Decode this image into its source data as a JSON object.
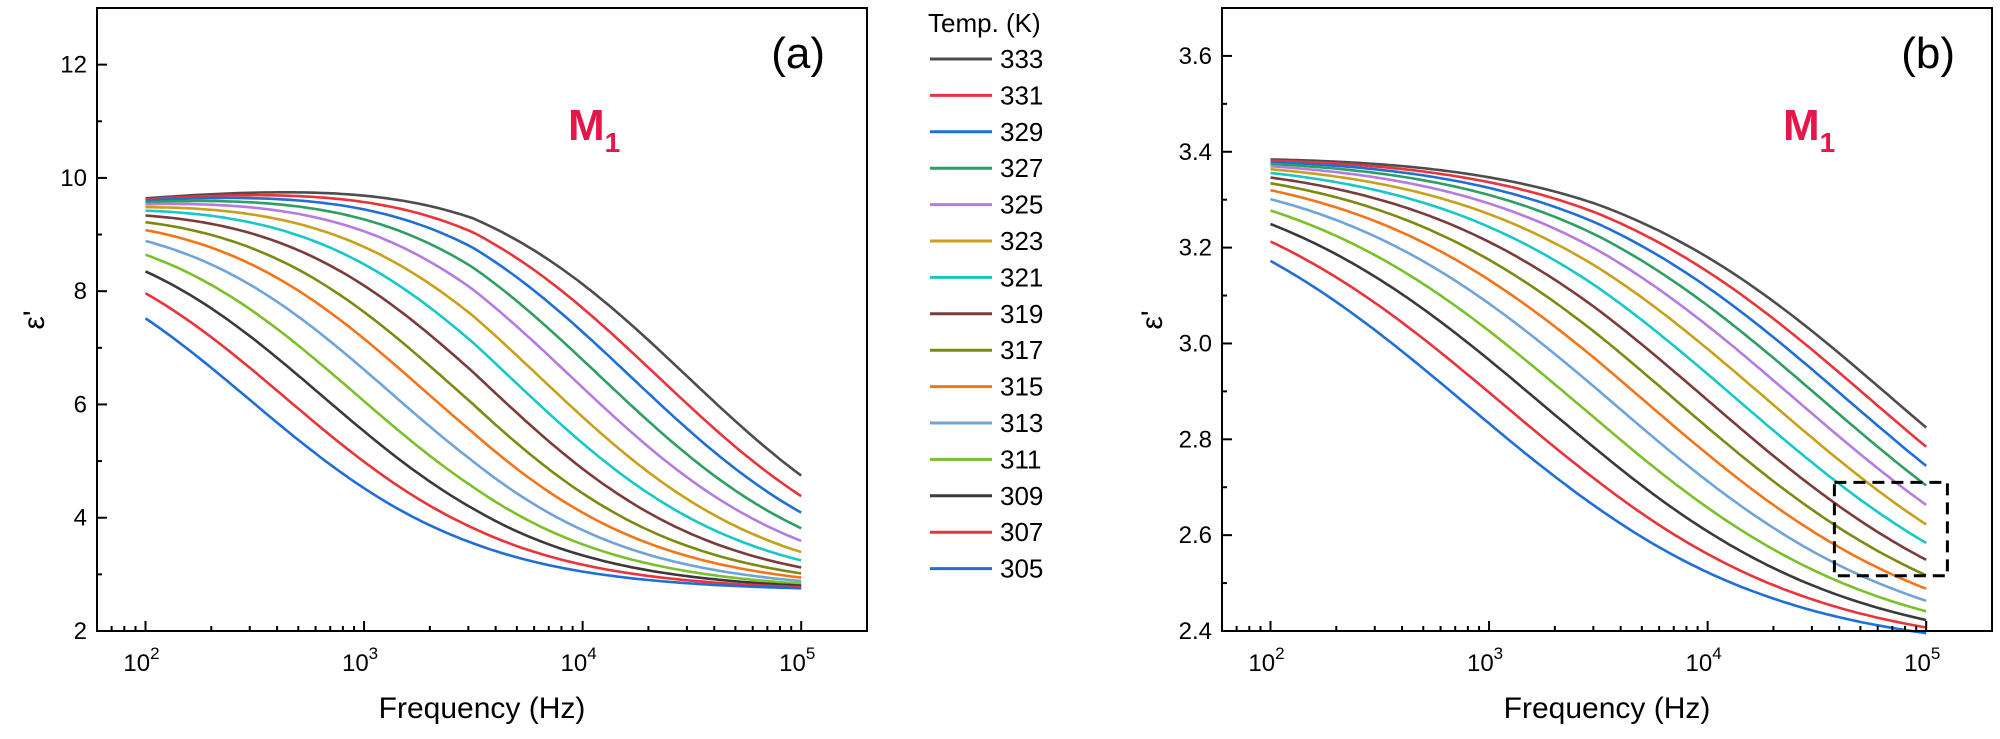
{
  "legend": {
    "title": "Temp. (K)",
    "entries": [
      "333",
      "331",
      "329",
      "327",
      "325",
      "323",
      "321",
      "319",
      "317",
      "315",
      "313",
      "311",
      "309",
      "307",
      "305"
    ],
    "colors": [
      "#4d4d4d",
      "#e8343a",
      "#1f6fd6",
      "#2e9e62",
      "#b57be0",
      "#c9a01a",
      "#17c7c9",
      "#7b3b3b",
      "#7d8a12",
      "#f27518",
      "#6ea4d8",
      "#7ac02a",
      "#3a3a3a",
      "#e8343a",
      "#1f6fd6"
    ]
  },
  "chart_data": [
    {
      "type": "line",
      "panel_label": "(a)",
      "annotation": {
        "main": "M",
        "sub": "1",
        "color": "#e5174a"
      },
      "xlabel": "Frequency (Hz)",
      "ylabel": "ε'",
      "x_scale": "log",
      "xlim": [
        60,
        200000
      ],
      "ylim": [
        2,
        13
      ],
      "x_tick_labels": [
        {
          "base": "10",
          "exp": "2"
        },
        {
          "base": "10",
          "exp": "3"
        },
        {
          "base": "10",
          "exp": "4"
        },
        {
          "base": "10",
          "exp": "5"
        }
      ],
      "x_ticks": [
        100,
        1000,
        10000,
        100000
      ],
      "y_ticks": [
        2,
        4,
        6,
        8,
        10,
        12
      ],
      "y_tick_labels": [
        "2",
        "4",
        "6",
        "8",
        "10",
        "12"
      ],
      "grid": false,
      "model": {
        "x_start": 100,
        "x_end": 100000,
        "low_start": 9.7,
        "low_end": 10.3,
        "high": 2.7,
        "width_decades": 1.15
      },
      "series": [
        {
          "name": "333",
          "f_c": 30000
        },
        {
          "name": "331",
          "f_c": 22000
        },
        {
          "name": "329",
          "f_c": 16500
        },
        {
          "name": "327",
          "f_c": 12000
        },
        {
          "name": "325",
          "f_c": 8800
        },
        {
          "name": "323",
          "f_c": 6300
        },
        {
          "name": "321",
          "f_c": 4600
        },
        {
          "name": "319",
          "f_c": 3300
        },
        {
          "name": "317",
          "f_c": 2300
        },
        {
          "name": "315",
          "f_c": 1650
        },
        {
          "name": "313",
          "f_c": 1150
        },
        {
          "name": "311",
          "f_c": 800
        },
        {
          "name": "309",
          "f_c": 560
        },
        {
          "name": "307",
          "f_c": 380
        },
        {
          "name": "305",
          "f_c": 260
        }
      ]
    },
    {
      "type": "line",
      "panel_label": "(b)",
      "annotation": {
        "main": "M",
        "sub": "1",
        "color": "#e5174a"
      },
      "xlabel": "Frequency (Hz)",
      "ylabel": "ε'",
      "x_scale": "log",
      "xlim": [
        60,
        200000
      ],
      "ylim": [
        2.4,
        3.7
      ],
      "x_tick_labels": [
        {
          "base": "10",
          "exp": "2"
        },
        {
          "base": "10",
          "exp": "3"
        },
        {
          "base": "10",
          "exp": "4"
        },
        {
          "base": "10",
          "exp": "5"
        }
      ],
      "x_ticks": [
        100,
        1000,
        10000,
        100000
      ],
      "y_ticks": [
        2.4,
        2.6,
        2.8,
        3.0,
        3.2,
        3.4,
        3.6
      ],
      "y_tick_labels": [
        "2.4",
        "2.6",
        "2.8",
        "3.0",
        "3.2",
        "3.4",
        "3.6"
      ],
      "grid": false,
      "model": {
        "x_start": 100,
        "x_end": 100000,
        "low_start": 3.4,
        "low_end": 3.42,
        "high": 2.35,
        "width_decades": 1.5
      },
      "highlight_box": {
        "x": [
          38000,
          125000
        ],
        "y": [
          2.515,
          2.71
        ]
      },
      "series": [
        {
          "name": "333",
          "f_c": 70000
        },
        {
          "name": "331",
          "f_c": 55000
        },
        {
          "name": "329",
          "f_c": 43000
        },
        {
          "name": "327",
          "f_c": 33000
        },
        {
          "name": "325",
          "f_c": 25000
        },
        {
          "name": "323",
          "f_c": 18500
        },
        {
          "name": "321",
          "f_c": 13500
        },
        {
          "name": "319",
          "f_c": 9800
        },
        {
          "name": "317",
          "f_c": 7000
        },
        {
          "name": "315",
          "f_c": 5000
        },
        {
          "name": "313",
          "f_c": 3500
        },
        {
          "name": "311",
          "f_c": 2400
        },
        {
          "name": "309",
          "f_c": 1650
        },
        {
          "name": "307",
          "f_c": 1100
        },
        {
          "name": "305",
          "f_c": 750
        }
      ]
    }
  ]
}
